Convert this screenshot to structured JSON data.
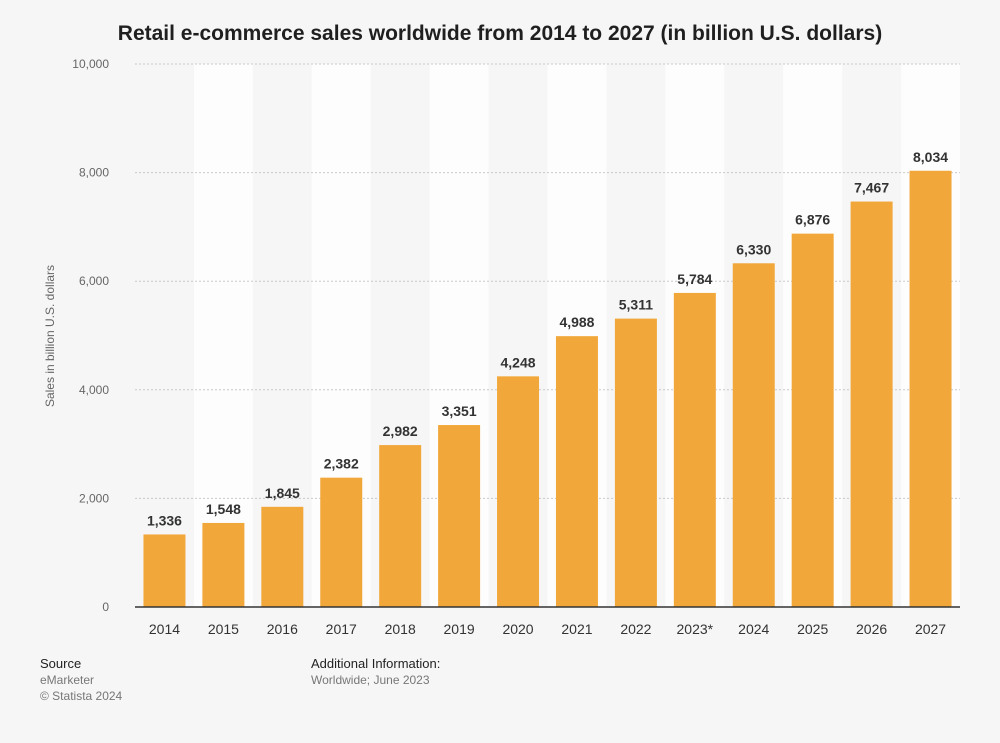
{
  "chart_data": {
    "type": "bar",
    "title": "Retail e-commerce sales worldwide from 2014 to 2027 (in billion U.S. dollars)",
    "xlabel": "",
    "ylabel": "Sales in billion U.S. dollars",
    "categories": [
      "2014",
      "2015",
      "2016",
      "2017",
      "2018",
      "2019",
      "2020",
      "2021",
      "2022",
      "2023*",
      "2024",
      "2025",
      "2026",
      "2027"
    ],
    "values": [
      1336,
      1548,
      1845,
      2382,
      2982,
      3351,
      4248,
      4988,
      5311,
      5784,
      6330,
      6876,
      7467,
      8034
    ],
    "data_labels": [
      "1,336",
      "1,548",
      "1,845",
      "2,382",
      "2,982",
      "3,351",
      "4,248",
      "4,988",
      "5,311",
      "5,784",
      "6,330",
      "6,876",
      "7,467",
      "8,034"
    ],
    "ylim": [
      0,
      10000
    ],
    "yticks": [
      0,
      2000,
      4000,
      6000,
      8000,
      10000
    ],
    "ytick_labels": [
      "0",
      "2,000",
      "4,000",
      "6,000",
      "8,000",
      "10,000"
    ],
    "grid": true,
    "bar_color": "#f2a73b",
    "legend": null
  },
  "footer": {
    "source_heading": "Source",
    "source_name": "eMarketer",
    "copyright": "© Statista 2024",
    "additional_heading": "Additional Information:",
    "additional_text": "Worldwide; June 2023"
  }
}
